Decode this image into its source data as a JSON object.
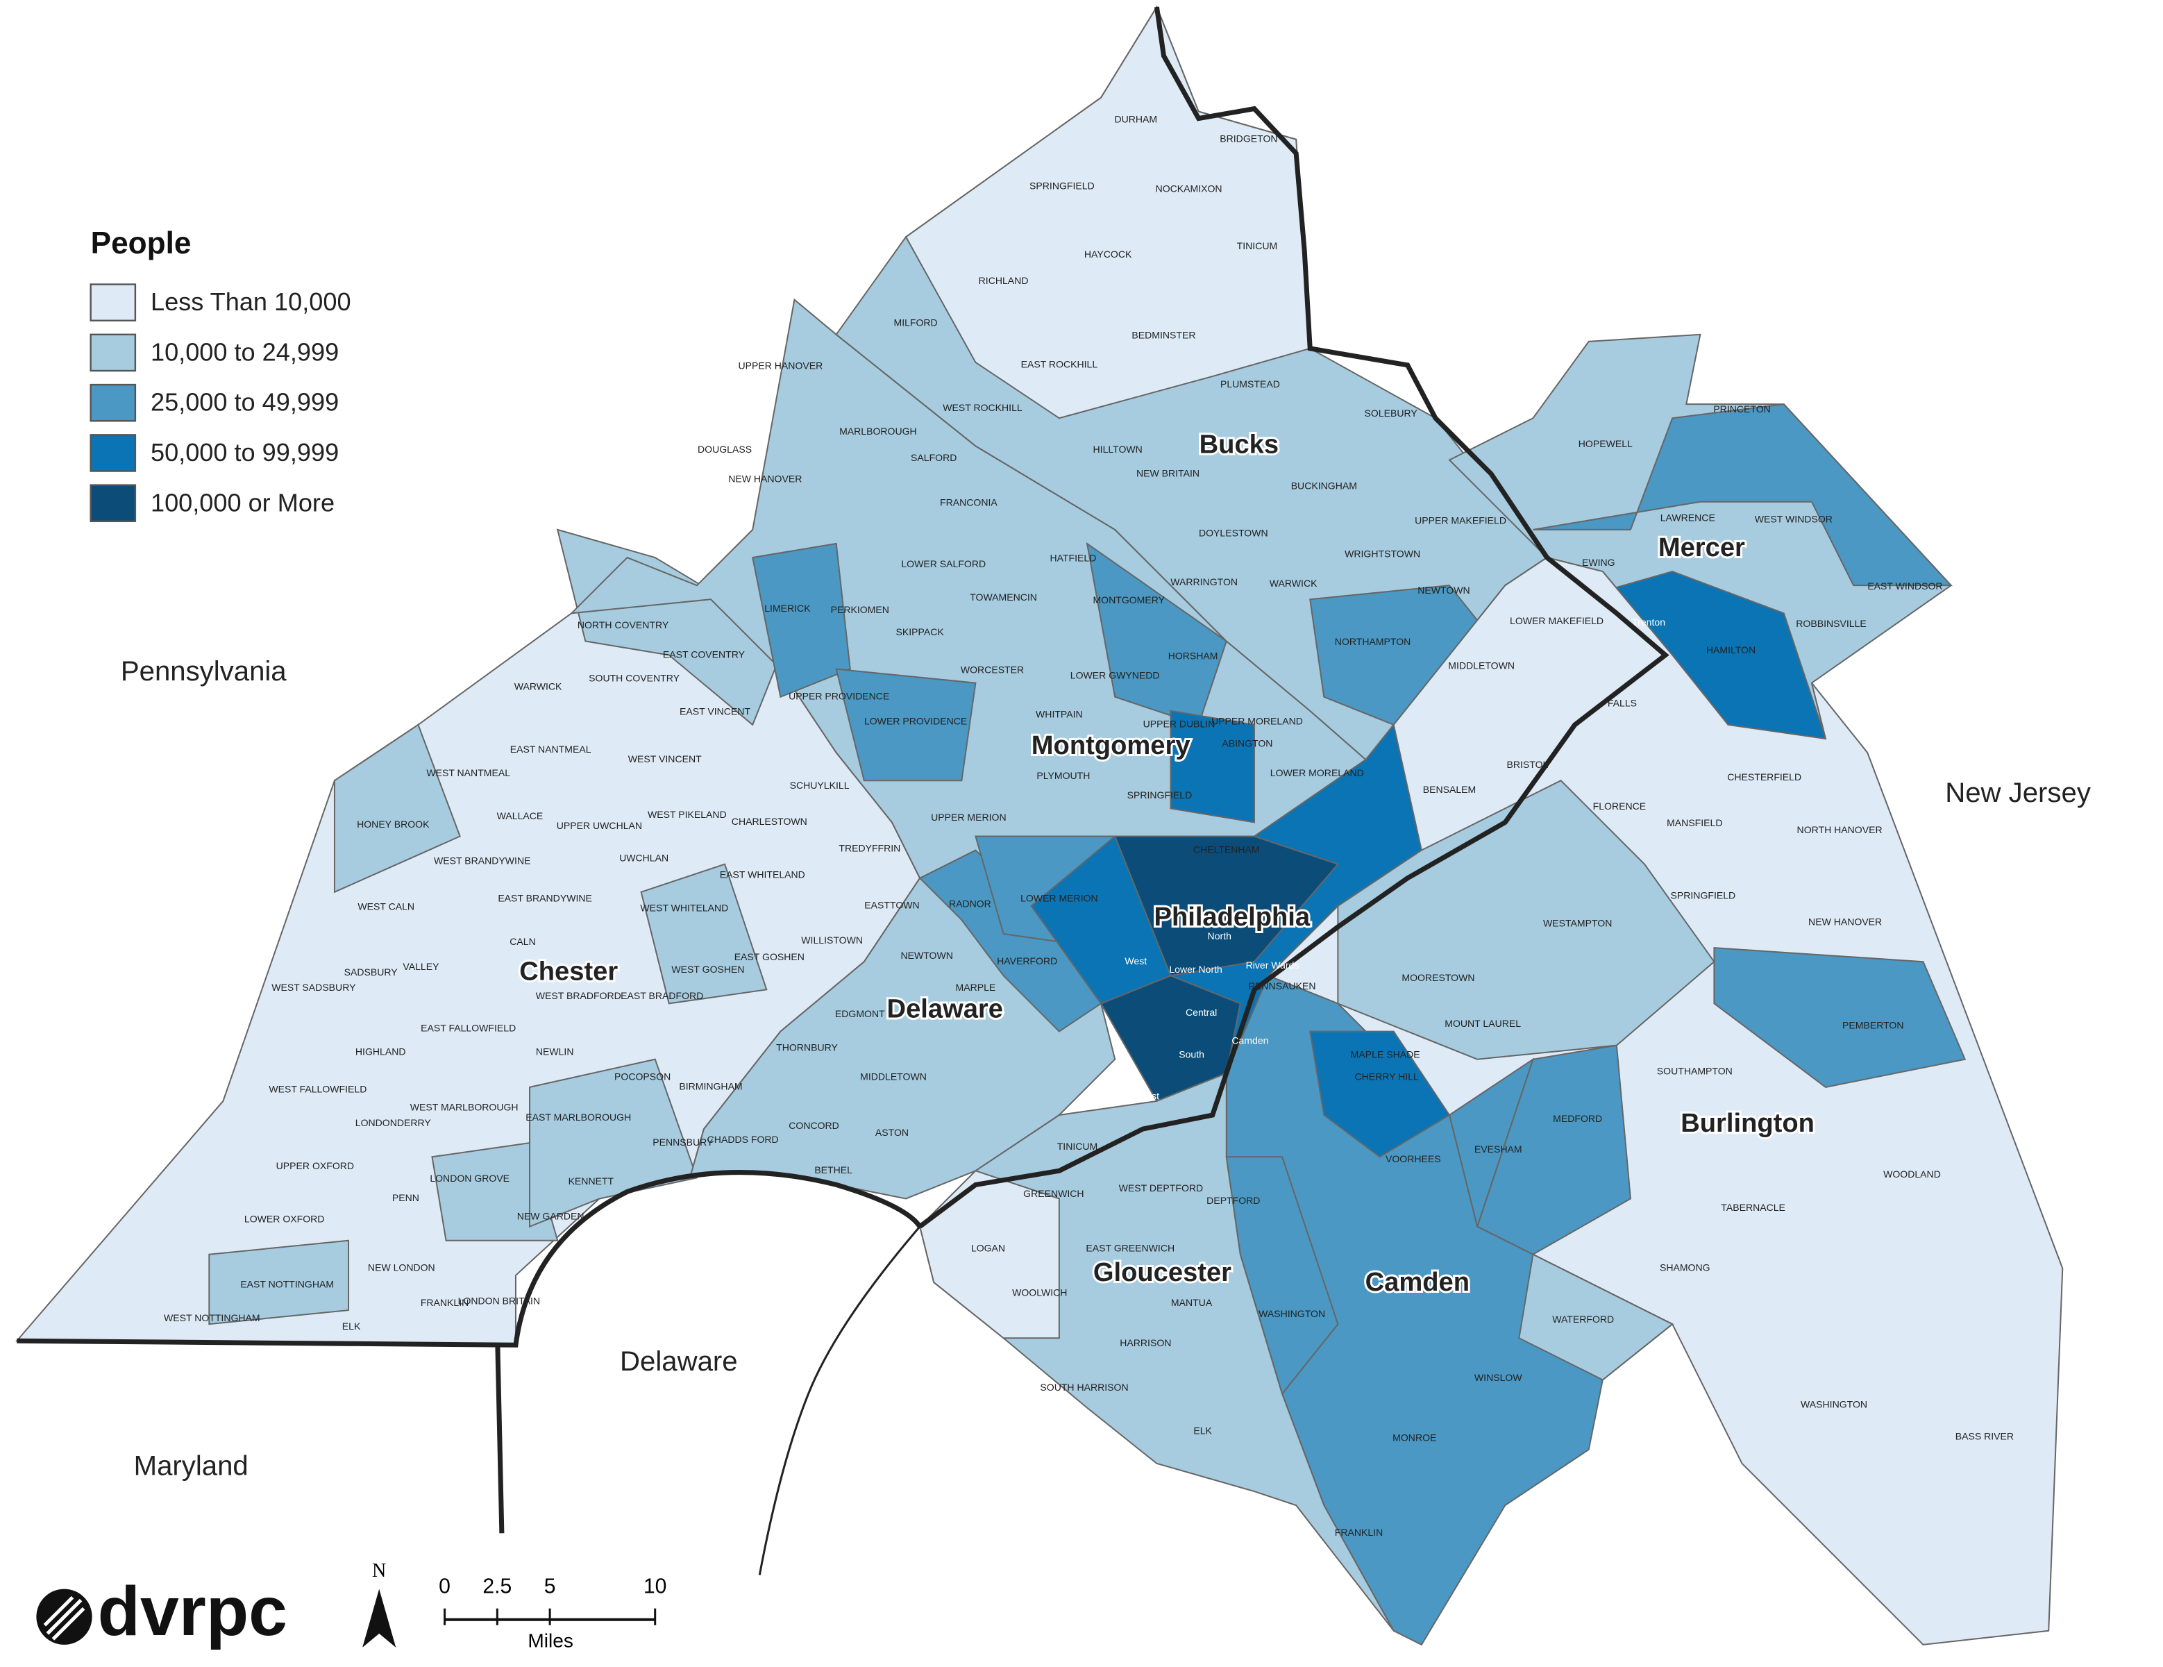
{
  "legend": {
    "title": "People",
    "items": [
      {
        "label": "Less Than 10,000",
        "color": "#deebf7"
      },
      {
        "label": "10,000 to 24,999",
        "color": "#a7cce0"
      },
      {
        "label": "25,000 to 49,999",
        "color": "#4a98c3"
      },
      {
        "label": "50,000 to 99,999",
        "color": "#0b74b4"
      },
      {
        "label": "100,000 or More",
        "color": "#0b4d78"
      }
    ]
  },
  "states": [
    "Pennsylvania",
    "New Jersey",
    "Delaware",
    "Maryland"
  ],
  "counties": [
    "Bucks",
    "Montgomery",
    "Chester",
    "Delaware",
    "Philadelphia",
    "Mercer",
    "Burlington",
    "Camden",
    "Gloucester"
  ],
  "municipalities": [
    "DURHAM",
    "BRIDGETON",
    "SPRINGFIELD",
    "NOCKAMIXON",
    "TINICUM",
    "HAYCOCK",
    "RICHLAND",
    "MILFORD",
    "BEDMINSTER",
    "EAST ROCKHILL",
    "PLUMSTEAD",
    "SOLEBURY",
    "WEST ROCKHILL",
    "HILLTOWN",
    "NEW BRITAIN",
    "BUCKINGHAM",
    "DOYLESTOWN",
    "UPPER MAKEFIELD",
    "WRIGHTSTOWN",
    "WARRINGTON",
    "WARWICK",
    "NORTHAMPTON",
    "NEWTOWN",
    "HORSHAM",
    "MIDDLETOWN",
    "LOWER MAKEFIELD",
    "FALLS",
    "BENSALEM",
    "BRISTOL",
    "HOPEWELL",
    "PRINCETON",
    "LAWRENCE",
    "WEST WINDSOR",
    "EWING",
    "HAMILTON",
    "ROBBINSVILLE",
    "EAST WINDSOR",
    "CHESTERFIELD",
    "FLORENCE",
    "MANSFIELD",
    "NORTH HANOVER",
    "SPRINGFIELD",
    "NEW HANOVER",
    "WESTAMPTON",
    "MOORESTOWN",
    "MOUNT LAUREL",
    "PEMBERTON",
    "SOUTHAMPTON",
    "MEDFORD",
    "EVESHAM",
    "WOODLAND",
    "TABERNACLE",
    "SHAMONG",
    "WASHINGTON",
    "BASS RIVER",
    "WATERFORD",
    "WINSLOW",
    "MONROE",
    "FRANKLIN",
    "WASHINGTON",
    "HARRISON",
    "SOUTH HARRISON",
    "ELK",
    "LOGAN",
    "WOOLWICH",
    "GREENWICH",
    "EAST GREENWICH",
    "MANTUA",
    "DEPTFORD",
    "WEST DEPTFORD",
    "CHERRY HILL",
    "VOORHEES",
    "PENNSAUKEN",
    "MAPLE SHADE",
    "DOUGLASS",
    "NEW HANOVER",
    "UPPER HANOVER",
    "MARLBOROUGH",
    "SALFORD",
    "FRANCONIA",
    "LOWER SALFORD",
    "LIMERICK",
    "SKIPPACK",
    "WORCESTER",
    "PERKIOMEN",
    "UPPER PROVIDENCE",
    "LOWER PROVIDENCE",
    "WHITPAIN",
    "PLYMOUTH",
    "UPPER MERION",
    "LOWER MERION",
    "CHELTENHAM",
    "ABINGTON",
    "UPPER DUBLIN",
    "LOWER GWYNEDD",
    "TOWAMENCIN",
    "HATFIELD",
    "MONTGOMERY",
    "SPRINGFIELD",
    "UPPER MORELAND",
    "LOWER MORELAND",
    "RADNOR",
    "HAVERFORD",
    "MARPLE",
    "EDGMONT",
    "MIDDLETOWN",
    "CONCORD",
    "THORNBURY",
    "BETHEL",
    "ASTON",
    "TINICUM",
    "WARWICK",
    "NORTH COVENTRY",
    "EAST COVENTRY",
    "SOUTH COVENTRY",
    "EAST VINCENT",
    "WEST VINCENT",
    "EAST NANTMEAL",
    "WEST NANTMEAL",
    "WALLACE",
    "HONEY BROOK",
    "UPPER UWCHLAN",
    "UWCHLAN",
    "WEST PIKELAND",
    "CHARLESTOWN",
    "SCHUYLKILL",
    "TREDYFFRIN",
    "EAST WHITELAND",
    "EASTTOWN",
    "WILLISTOWN",
    "WEST WHITELAND",
    "WEST GOSHEN",
    "EAST GOSHEN",
    "NEWTOWN",
    "WEST CALN",
    "WEST BRANDYWINE",
    "EAST BRANDYWINE",
    "CALN",
    "VALLEY",
    "SADSBURY",
    "WEST SADSBURY",
    "WEST BRADFORD",
    "EAST BRADFORD",
    "HIGHLAND",
    "EAST FALLOWFIELD",
    "NEWLIN",
    "POCOPSON",
    "WEST FALLOWFIELD",
    "WEST MARLBOROUGH",
    "EAST MARLBOROUGH",
    "LONDONDERRY",
    "BIRMINGHAM",
    "CHADDS FORD",
    "PENNSBURY",
    "UPPER OXFORD",
    "PENN",
    "LONDON GROVE",
    "NEW GARDEN",
    "KENNETT",
    "LOWER OXFORD",
    "NEW LONDON",
    "FRANKLIN",
    "LONDON BRITAIN",
    "EAST NOTTINGHAM",
    "WEST NOTTINGHAM",
    "ELK",
    "North",
    "Lower North",
    "River Wards",
    "Central",
    "South",
    "West",
    "Lower Southwest",
    "Camden",
    "Trenton"
  ],
  "scale": {
    "ticks": [
      0,
      2.5,
      5,
      10
    ],
    "unit": "Miles",
    "north": "N"
  },
  "logo": "dvrpc"
}
